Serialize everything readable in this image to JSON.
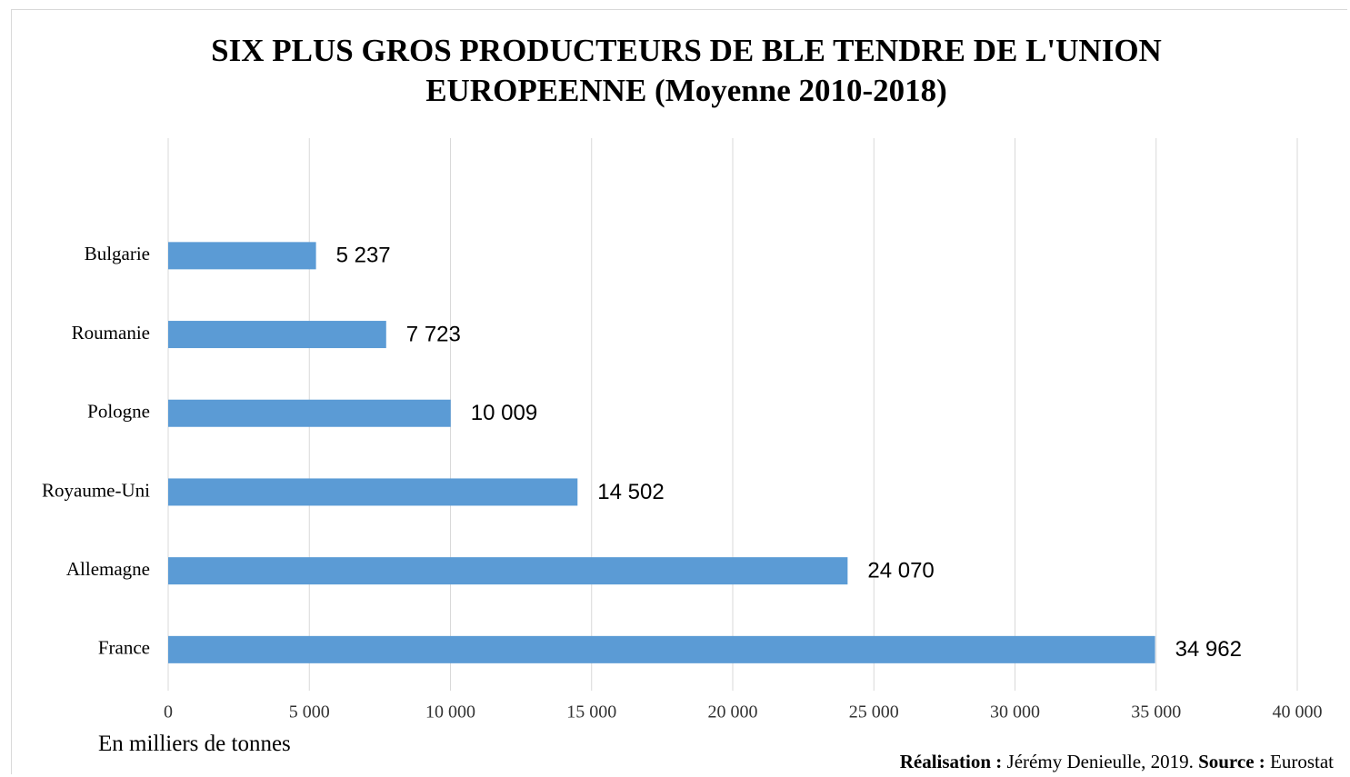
{
  "chart_data": {
    "type": "barh",
    "title": "SIX PLUS GROS PRODUCTEURS DE BLE TENDRE DE L'UNION EUROPEENNE (Moyenne 2010-2018)",
    "categories": [
      "Bulgarie",
      "Roumanie",
      "Pologne",
      "Royaume-Uni",
      "Allemagne",
      "France"
    ],
    "values": [
      5237,
      7723,
      10009,
      14502,
      24070,
      34962
    ],
    "value_labels": [
      "5 237",
      "7 723",
      "10 009",
      "14 502",
      "24 070",
      "34 962"
    ],
    "color": "#5b9bd5",
    "xlabel": "En milliers de tonnes",
    "xlim": [
      0,
      40000
    ],
    "xticks": [
      0,
      {
        "value": 5000,
        "label": "5 000"
      },
      {
        "value": 10000,
        "label": "10 000"
      },
      {
        "value": 15000,
        "label": "15 000"
      },
      {
        "value": 20000,
        "label": "20 000"
      },
      {
        "value": 25000,
        "label": "25 000"
      },
      {
        "value": 30000,
        "label": "30 000"
      },
      {
        "value": 35000,
        "label": "35 000"
      },
      {
        "value": 40000,
        "label": "40 000"
      }
    ],
    "grid": true,
    "note": {
      "realisation_label": "Réalisation :",
      "realisation": "Jérémy Denieulle, 2019.",
      "source_label": "Source :",
      "source": "Eurostat"
    }
  }
}
